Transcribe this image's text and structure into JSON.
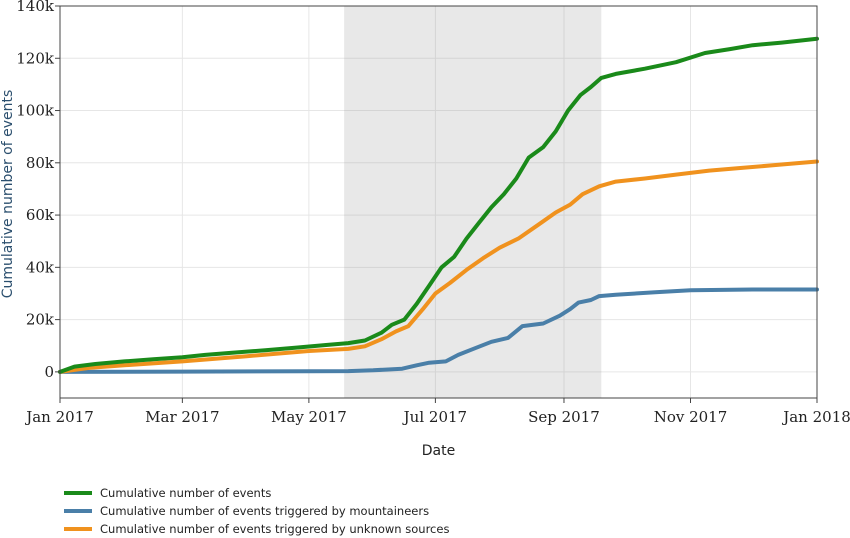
{
  "chart_data": {
    "type": "line",
    "xlabel": "Date",
    "ylabel": "Cumulative number of events",
    "x_ticks": [
      "Jan 2017",
      "Mar 2017",
      "May 2017",
      "Jul 2017",
      "Sep 2017",
      "Nov 2017",
      "Jan 2018"
    ],
    "y_ticks": [
      "0",
      "20k",
      "40k",
      "60k",
      "80k",
      "100k",
      "120k",
      "140k"
    ],
    "xlim": [
      "2017-01-01",
      "2018-01-01"
    ],
    "ylim": [
      -10000,
      140000
    ],
    "grid": true,
    "shaded_region": {
      "start": "2017-05-18",
      "end": "2017-09-19"
    },
    "legend_position": "bottom-left",
    "series": [
      {
        "name": "Cumulative number of events",
        "color": "#1a8a1a",
        "points": [
          [
            "2017-01-01",
            0
          ],
          [
            "2017-01-08",
            2000
          ],
          [
            "2017-01-18",
            3000
          ],
          [
            "2017-02-01",
            4000
          ],
          [
            "2017-02-15",
            4800
          ],
          [
            "2017-03-01",
            5600
          ],
          [
            "2017-03-12",
            6500
          ],
          [
            "2017-03-25",
            7300
          ],
          [
            "2017-04-10",
            8300
          ],
          [
            "2017-04-25",
            9300
          ],
          [
            "2017-05-10",
            10300
          ],
          [
            "2017-05-20",
            11000
          ],
          [
            "2017-05-28",
            12000
          ],
          [
            "2017-06-05",
            15000
          ],
          [
            "2017-06-10",
            18000
          ],
          [
            "2017-06-16",
            20000
          ],
          [
            "2017-06-22",
            26000
          ],
          [
            "2017-06-28",
            33000
          ],
          [
            "2017-07-04",
            40000
          ],
          [
            "2017-07-10",
            44000
          ],
          [
            "2017-07-16",
            51000
          ],
          [
            "2017-07-22",
            57000
          ],
          [
            "2017-07-28",
            63000
          ],
          [
            "2017-08-03",
            68000
          ],
          [
            "2017-08-09",
            74000
          ],
          [
            "2017-08-15",
            82000
          ],
          [
            "2017-08-22",
            86000
          ],
          [
            "2017-08-28",
            92000
          ],
          [
            "2017-09-03",
            100000
          ],
          [
            "2017-09-09",
            106000
          ],
          [
            "2017-09-14",
            109000
          ],
          [
            "2017-09-19",
            112500
          ],
          [
            "2017-09-26",
            114000
          ],
          [
            "2017-10-10",
            116000
          ],
          [
            "2017-10-25",
            118500
          ],
          [
            "2017-11-08",
            122000
          ],
          [
            "2017-11-20",
            123500
          ],
          [
            "2017-12-01",
            125000
          ],
          [
            "2017-12-15",
            126000
          ],
          [
            "2018-01-01",
            127500
          ]
        ]
      },
      {
        "name": "Cumulative number of events triggered by mountaineers",
        "color": "#4a7fa8",
        "points": [
          [
            "2017-01-01",
            0
          ],
          [
            "2017-03-01",
            100
          ],
          [
            "2017-05-01",
            200
          ],
          [
            "2017-05-20",
            300
          ],
          [
            "2017-06-01",
            600
          ],
          [
            "2017-06-15",
            1200
          ],
          [
            "2017-06-22",
            2500
          ],
          [
            "2017-06-28",
            3500
          ],
          [
            "2017-07-06",
            4000
          ],
          [
            "2017-07-12",
            6500
          ],
          [
            "2017-07-20",
            9000
          ],
          [
            "2017-07-28",
            11500
          ],
          [
            "2017-08-05",
            13000
          ],
          [
            "2017-08-12",
            17500
          ],
          [
            "2017-08-22",
            18500
          ],
          [
            "2017-08-30",
            21500
          ],
          [
            "2017-09-04",
            24000
          ],
          [
            "2017-09-08",
            26500
          ],
          [
            "2017-09-14",
            27500
          ],
          [
            "2017-09-18",
            29000
          ],
          [
            "2017-09-26",
            29500
          ],
          [
            "2017-10-15",
            30500
          ],
          [
            "2017-11-01",
            31200
          ],
          [
            "2017-12-01",
            31500
          ],
          [
            "2018-01-01",
            31500
          ]
        ]
      },
      {
        "name": "Cumulative number of events triggered by unknown sources",
        "color": "#f0921e",
        "points": [
          [
            "2017-01-01",
            0
          ],
          [
            "2017-01-15",
            1500
          ],
          [
            "2017-02-01",
            2500
          ],
          [
            "2017-03-01",
            4000
          ],
          [
            "2017-04-01",
            6000
          ],
          [
            "2017-05-01",
            8000
          ],
          [
            "2017-05-20",
            8800
          ],
          [
            "2017-05-28",
            9800
          ],
          [
            "2017-06-05",
            12500
          ],
          [
            "2017-06-12",
            15500
          ],
          [
            "2017-06-18",
            17500
          ],
          [
            "2017-06-25",
            24000
          ],
          [
            "2017-07-01",
            30000
          ],
          [
            "2017-07-08",
            34000
          ],
          [
            "2017-07-16",
            39000
          ],
          [
            "2017-07-24",
            43500
          ],
          [
            "2017-08-01",
            47500
          ],
          [
            "2017-08-10",
            51000
          ],
          [
            "2017-08-20",
            56500
          ],
          [
            "2017-08-28",
            61000
          ],
          [
            "2017-09-04",
            64000
          ],
          [
            "2017-09-10",
            68000
          ],
          [
            "2017-09-18",
            71000
          ],
          [
            "2017-09-26",
            72800
          ],
          [
            "2017-10-10",
            74000
          ],
          [
            "2017-10-25",
            75500
          ],
          [
            "2017-11-10",
            77000
          ],
          [
            "2017-11-25",
            78000
          ],
          [
            "2017-12-10",
            79000
          ],
          [
            "2018-01-01",
            80500
          ]
        ]
      }
    ]
  }
}
